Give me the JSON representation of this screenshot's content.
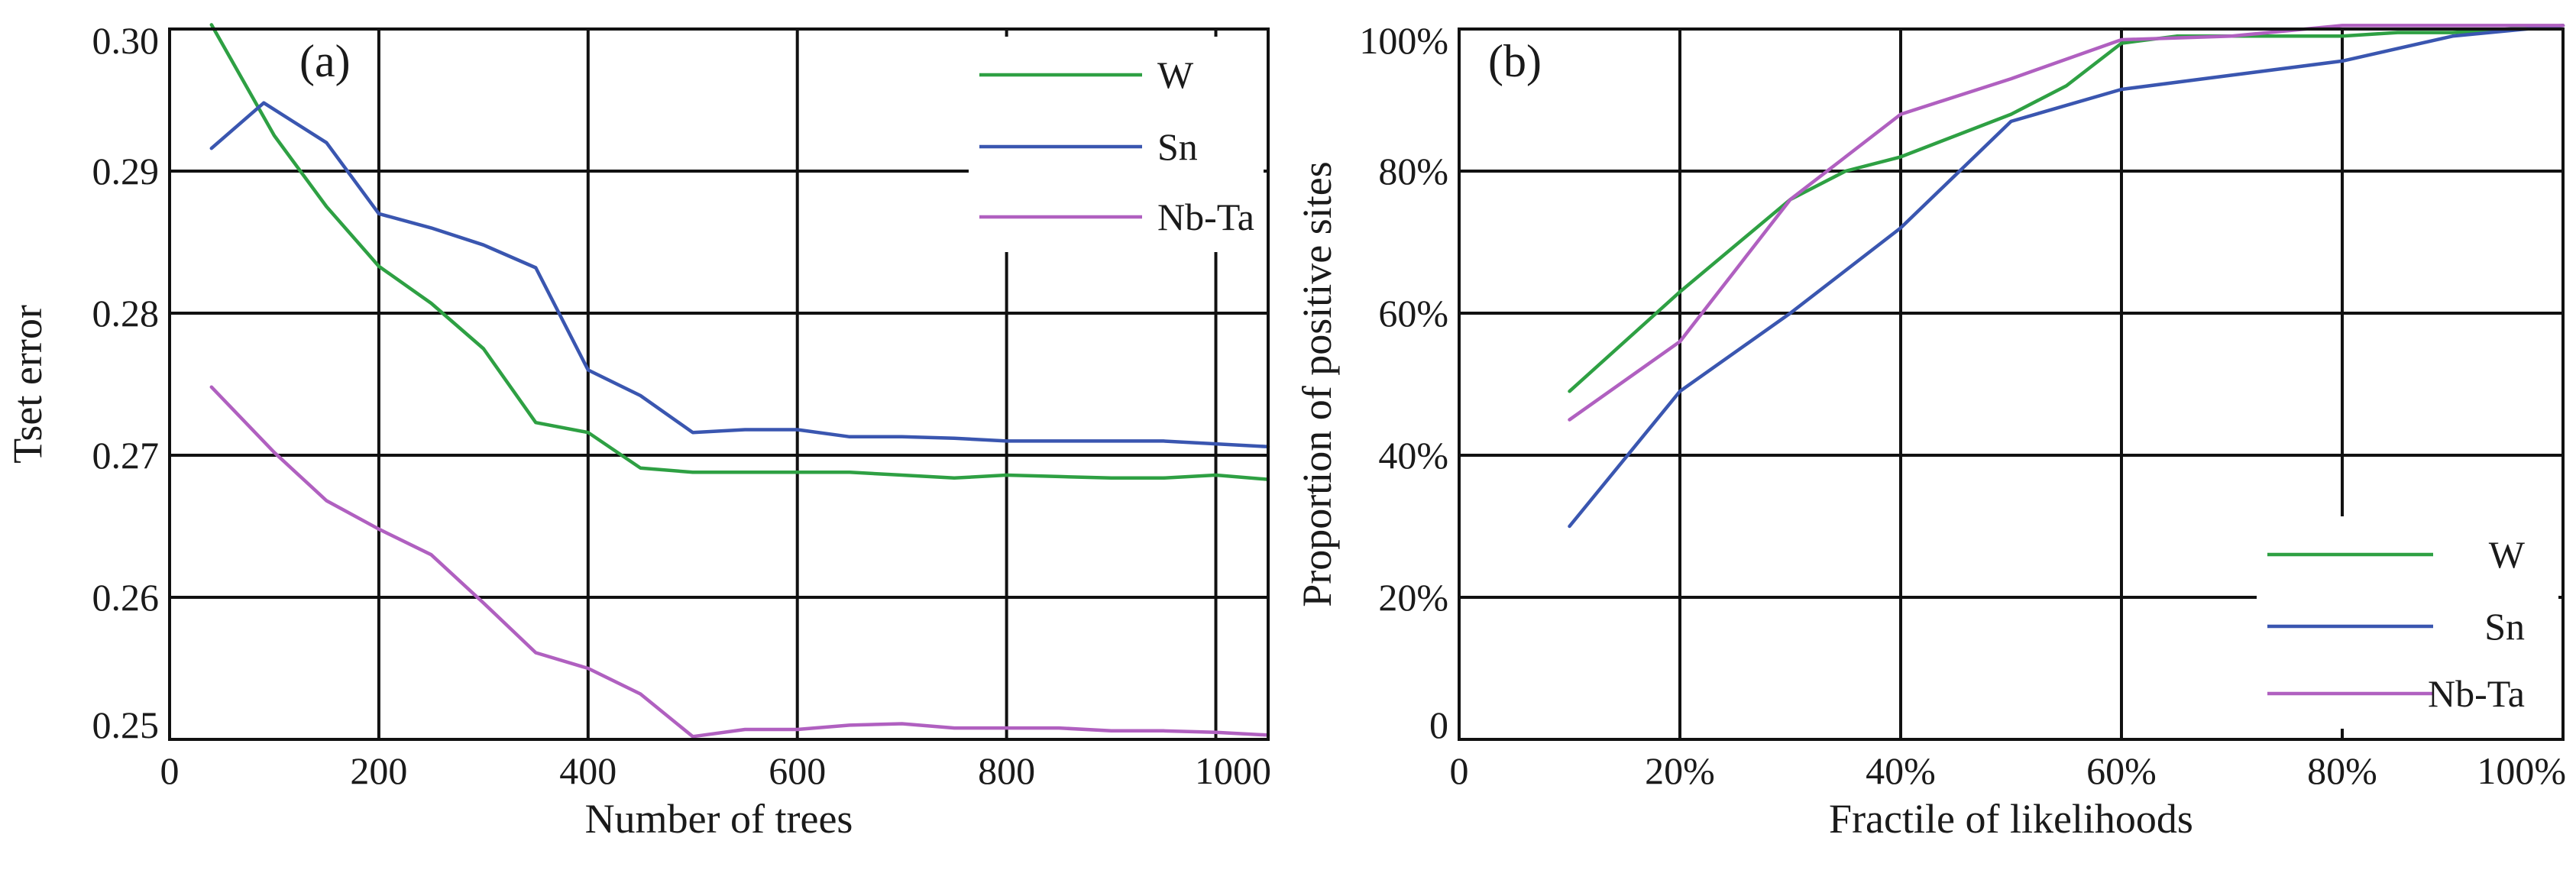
{
  "chart_data": [
    {
      "type": "line",
      "panel_label": "(a)",
      "xlabel": "Number of trees",
      "ylabel": "Tset error",
      "xlim": [
        0,
        1050
      ],
      "ylim": [
        0.25,
        0.3
      ],
      "xticks": [
        0,
        200,
        400,
        600,
        800,
        1000
      ],
      "xtick_labels": [
        "0",
        "200",
        "400",
        "600",
        "800",
        "1000"
      ],
      "yticks": [
        0.25,
        0.26,
        0.27,
        0.28,
        0.29,
        0.3
      ],
      "ytick_labels": [
        "0.25",
        "0.26",
        "0.27",
        "0.28",
        "0.29",
        "0.30"
      ],
      "grid": true,
      "legend_position": "top-right",
      "series": [
        {
          "name": "W",
          "color": "#2ea043",
          "x": [
            40,
            100,
            150,
            200,
            250,
            300,
            350,
            400,
            450,
            500,
            550,
            600,
            650,
            700,
            750,
            800,
            850,
            900,
            950,
            1000,
            1050
          ],
          "y": [
            0.3003,
            0.2925,
            0.2875,
            0.2833,
            0.2807,
            0.2775,
            0.2723,
            0.2716,
            0.2691,
            0.2688,
            0.2688,
            0.2688,
            0.2688,
            0.2686,
            0.2684,
            0.2686,
            0.2685,
            0.2684,
            0.2684,
            0.2686,
            0.2683
          ]
        },
        {
          "name": "Sn",
          "color": "#3a56b0",
          "x": [
            40,
            90,
            150,
            200,
            250,
            300,
            350,
            400,
            450,
            500,
            550,
            600,
            650,
            700,
            750,
            800,
            850,
            900,
            950,
            1000,
            1050
          ],
          "y": [
            0.2916,
            0.2948,
            0.292,
            0.287,
            0.286,
            0.2848,
            0.2832,
            0.276,
            0.2742,
            0.2716,
            0.2718,
            0.2718,
            0.2713,
            0.2713,
            0.2712,
            0.271,
            0.271,
            0.271,
            0.271,
            0.2708,
            0.2706
          ]
        },
        {
          "name": "Nb-Ta",
          "color": "#b060c0",
          "x": [
            40,
            100,
            150,
            200,
            250,
            300,
            350,
            400,
            450,
            500,
            550,
            600,
            650,
            700,
            750,
            800,
            850,
            900,
            950,
            1000,
            1050
          ],
          "y": [
            0.2748,
            0.2702,
            0.2668,
            0.2648,
            0.263,
            0.2596,
            0.2561,
            0.255,
            0.2532,
            0.2502,
            0.2507,
            0.2507,
            0.251,
            0.2511,
            0.2508,
            0.2508,
            0.2508,
            0.2506,
            0.2506,
            0.2505,
            0.2503
          ]
        }
      ]
    },
    {
      "type": "line",
      "panel_label": "(b)",
      "xlabel": "Fractile of likelihoods",
      "ylabel": "Proportion of positive sites",
      "xlim": [
        0,
        100
      ],
      "ylim": [
        0,
        100
      ],
      "xticks": [
        0,
        20,
        40,
        60,
        80,
        100
      ],
      "xtick_labels": [
        "0",
        "20%",
        "40%",
        "60%",
        "80%",
        "100%"
      ],
      "yticks": [
        0,
        20,
        40,
        60,
        80,
        100
      ],
      "ytick_labels": [
        "0",
        "20%",
        "40%",
        "60%",
        "80%",
        "100%"
      ],
      "grid": true,
      "legend_position": "bottom-right",
      "series": [
        {
          "name": "W",
          "color": "#2ea043",
          "x": [
            10,
            20,
            30,
            35,
            40,
            45,
            50,
            55,
            60,
            65,
            70,
            75,
            80,
            85,
            90,
            95,
            100
          ],
          "y": [
            49,
            63,
            76,
            80,
            82,
            85,
            88,
            92,
            98,
            99,
            99,
            99,
            99,
            99.5,
            99.5,
            100,
            100.5
          ]
        },
        {
          "name": "Sn",
          "color": "#3a56b0",
          "x": [
            10,
            20,
            30,
            40,
            50,
            60,
            70,
            80,
            90,
            100
          ],
          "y": [
            30,
            49,
            60,
            72,
            87,
            91.5,
            93.5,
            95.5,
            99,
            100.5
          ]
        },
        {
          "name": "Nb-Ta",
          "color": "#b060c0",
          "x": [
            10,
            20,
            25,
            30,
            35,
            40,
            50,
            60,
            70,
            80,
            90,
            100
          ],
          "y": [
            45,
            56,
            66,
            76,
            82,
            88,
            93,
            98.5,
            99,
            100.5,
            100.5,
            100.5
          ]
        }
      ]
    }
  ]
}
